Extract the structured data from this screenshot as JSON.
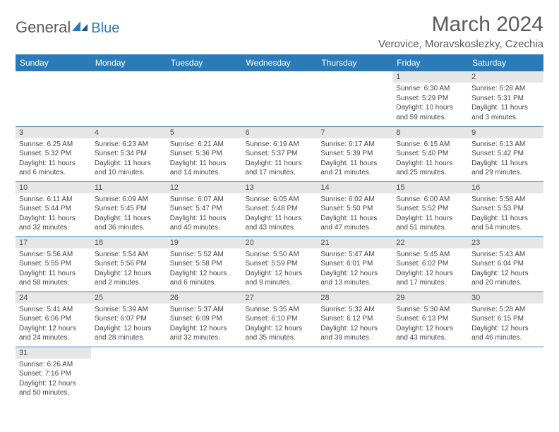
{
  "brand": {
    "part1": "General",
    "part2": "Blue"
  },
  "title": "March 2024",
  "location": "Verovice, Moravskoslezky, Czechia",
  "colors": {
    "header_bg": "#2b7bb9",
    "header_text": "#ffffff",
    "daynum_bg": "#e6e6e6",
    "row_divider": "#2b7bb9",
    "body_text": "#444444",
    "title_text": "#5a5a5a"
  },
  "fonts": {
    "title_size": 30,
    "location_size": 15,
    "dayheader_size": 12,
    "daynum_size": 11,
    "body_size": 10
  },
  "day_headers": [
    "Sunday",
    "Monday",
    "Tuesday",
    "Wednesday",
    "Thursday",
    "Friday",
    "Saturday"
  ],
  "weeks": [
    [
      null,
      null,
      null,
      null,
      null,
      {
        "n": "1",
        "sr": "Sunrise: 6:30 AM",
        "ss": "Sunset: 5:29 PM",
        "d1": "Daylight: 10 hours",
        "d2": "and 59 minutes."
      },
      {
        "n": "2",
        "sr": "Sunrise: 6:28 AM",
        "ss": "Sunset: 5:31 PM",
        "d1": "Daylight: 11 hours",
        "d2": "and 3 minutes."
      }
    ],
    [
      {
        "n": "3",
        "sr": "Sunrise: 6:25 AM",
        "ss": "Sunset: 5:32 PM",
        "d1": "Daylight: 11 hours",
        "d2": "and 6 minutes."
      },
      {
        "n": "4",
        "sr": "Sunrise: 6:23 AM",
        "ss": "Sunset: 5:34 PM",
        "d1": "Daylight: 11 hours",
        "d2": "and 10 minutes."
      },
      {
        "n": "5",
        "sr": "Sunrise: 6:21 AM",
        "ss": "Sunset: 5:36 PM",
        "d1": "Daylight: 11 hours",
        "d2": "and 14 minutes."
      },
      {
        "n": "6",
        "sr": "Sunrise: 6:19 AM",
        "ss": "Sunset: 5:37 PM",
        "d1": "Daylight: 11 hours",
        "d2": "and 17 minutes."
      },
      {
        "n": "7",
        "sr": "Sunrise: 6:17 AM",
        "ss": "Sunset: 5:39 PM",
        "d1": "Daylight: 11 hours",
        "d2": "and 21 minutes."
      },
      {
        "n": "8",
        "sr": "Sunrise: 6:15 AM",
        "ss": "Sunset: 5:40 PM",
        "d1": "Daylight: 11 hours",
        "d2": "and 25 minutes."
      },
      {
        "n": "9",
        "sr": "Sunrise: 6:13 AM",
        "ss": "Sunset: 5:42 PM",
        "d1": "Daylight: 11 hours",
        "d2": "and 29 minutes."
      }
    ],
    [
      {
        "n": "10",
        "sr": "Sunrise: 6:11 AM",
        "ss": "Sunset: 5:44 PM",
        "d1": "Daylight: 11 hours",
        "d2": "and 32 minutes."
      },
      {
        "n": "11",
        "sr": "Sunrise: 6:09 AM",
        "ss": "Sunset: 5:45 PM",
        "d1": "Daylight: 11 hours",
        "d2": "and 36 minutes."
      },
      {
        "n": "12",
        "sr": "Sunrise: 6:07 AM",
        "ss": "Sunset: 5:47 PM",
        "d1": "Daylight: 11 hours",
        "d2": "and 40 minutes."
      },
      {
        "n": "13",
        "sr": "Sunrise: 6:05 AM",
        "ss": "Sunset: 5:48 PM",
        "d1": "Daylight: 11 hours",
        "d2": "and 43 minutes."
      },
      {
        "n": "14",
        "sr": "Sunrise: 6:02 AM",
        "ss": "Sunset: 5:50 PM",
        "d1": "Daylight: 11 hours",
        "d2": "and 47 minutes."
      },
      {
        "n": "15",
        "sr": "Sunrise: 6:00 AM",
        "ss": "Sunset: 5:52 PM",
        "d1": "Daylight: 11 hours",
        "d2": "and 51 minutes."
      },
      {
        "n": "16",
        "sr": "Sunrise: 5:58 AM",
        "ss": "Sunset: 5:53 PM",
        "d1": "Daylight: 11 hours",
        "d2": "and 54 minutes."
      }
    ],
    [
      {
        "n": "17",
        "sr": "Sunrise: 5:56 AM",
        "ss": "Sunset: 5:55 PM",
        "d1": "Daylight: 11 hours",
        "d2": "and 58 minutes."
      },
      {
        "n": "18",
        "sr": "Sunrise: 5:54 AM",
        "ss": "Sunset: 5:56 PM",
        "d1": "Daylight: 12 hours",
        "d2": "and 2 minutes."
      },
      {
        "n": "19",
        "sr": "Sunrise: 5:52 AM",
        "ss": "Sunset: 5:58 PM",
        "d1": "Daylight: 12 hours",
        "d2": "and 6 minutes."
      },
      {
        "n": "20",
        "sr": "Sunrise: 5:50 AM",
        "ss": "Sunset: 5:59 PM",
        "d1": "Daylight: 12 hours",
        "d2": "and 9 minutes."
      },
      {
        "n": "21",
        "sr": "Sunrise: 5:47 AM",
        "ss": "Sunset: 6:01 PM",
        "d1": "Daylight: 12 hours",
        "d2": "and 13 minutes."
      },
      {
        "n": "22",
        "sr": "Sunrise: 5:45 AM",
        "ss": "Sunset: 6:02 PM",
        "d1": "Daylight: 12 hours",
        "d2": "and 17 minutes."
      },
      {
        "n": "23",
        "sr": "Sunrise: 5:43 AM",
        "ss": "Sunset: 6:04 PM",
        "d1": "Daylight: 12 hours",
        "d2": "and 20 minutes."
      }
    ],
    [
      {
        "n": "24",
        "sr": "Sunrise: 5:41 AM",
        "ss": "Sunset: 6:06 PM",
        "d1": "Daylight: 12 hours",
        "d2": "and 24 minutes."
      },
      {
        "n": "25",
        "sr": "Sunrise: 5:39 AM",
        "ss": "Sunset: 6:07 PM",
        "d1": "Daylight: 12 hours",
        "d2": "and 28 minutes."
      },
      {
        "n": "26",
        "sr": "Sunrise: 5:37 AM",
        "ss": "Sunset: 6:09 PM",
        "d1": "Daylight: 12 hours",
        "d2": "and 32 minutes."
      },
      {
        "n": "27",
        "sr": "Sunrise: 5:35 AM",
        "ss": "Sunset: 6:10 PM",
        "d1": "Daylight: 12 hours",
        "d2": "and 35 minutes."
      },
      {
        "n": "28",
        "sr": "Sunrise: 5:32 AM",
        "ss": "Sunset: 6:12 PM",
        "d1": "Daylight: 12 hours",
        "d2": "and 39 minutes."
      },
      {
        "n": "29",
        "sr": "Sunrise: 5:30 AM",
        "ss": "Sunset: 6:13 PM",
        "d1": "Daylight: 12 hours",
        "d2": "and 43 minutes."
      },
      {
        "n": "30",
        "sr": "Sunrise: 5:28 AM",
        "ss": "Sunset: 6:15 PM",
        "d1": "Daylight: 12 hours",
        "d2": "and 46 minutes."
      }
    ],
    [
      {
        "n": "31",
        "sr": "Sunrise: 6:26 AM",
        "ss": "Sunset: 7:16 PM",
        "d1": "Daylight: 12 hours",
        "d2": "and 50 minutes."
      },
      null,
      null,
      null,
      null,
      null,
      null
    ]
  ]
}
